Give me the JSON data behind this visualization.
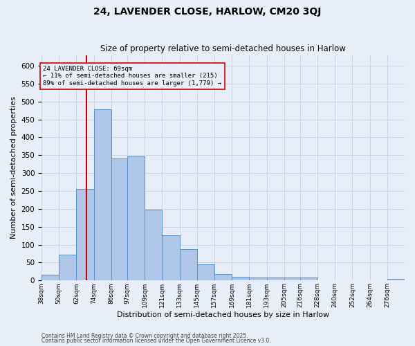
{
  "title": "24, LAVENDER CLOSE, HARLOW, CM20 3QJ",
  "subtitle": "Size of property relative to semi-detached houses in Harlow",
  "xlabel": "Distribution of semi-detached houses by size in Harlow",
  "ylabel": "Number of semi-detached properties",
  "categories": [
    "38sqm",
    "50sqm",
    "62sqm",
    "74sqm",
    "86sqm",
    "97sqm",
    "109sqm",
    "121sqm",
    "133sqm",
    "145sqm",
    "157sqm",
    "169sqm",
    "181sqm",
    "193sqm",
    "205sqm",
    "216sqm",
    "228sqm",
    "240sqm",
    "252sqm",
    "264sqm",
    "276sqm"
  ],
  "bin_lefts": [
    38,
    50,
    62,
    74,
    86,
    97,
    109,
    121,
    133,
    145,
    157,
    169,
    181,
    193,
    205,
    216,
    228,
    240,
    252,
    264,
    276
  ],
  "bin_rights": [
    50,
    62,
    74,
    86,
    97,
    109,
    121,
    133,
    145,
    157,
    169,
    181,
    193,
    205,
    216,
    228,
    240,
    252,
    264,
    276,
    288
  ],
  "values": [
    17,
    73,
    255,
    478,
    340,
    347,
    197,
    126,
    88,
    46,
    18,
    11,
    8,
    8,
    9,
    9,
    1,
    0,
    1,
    0,
    5
  ],
  "bar_color": "#aec6e8",
  "bar_edge_color": "#5a8fc2",
  "grid_color": "#c8d4e8",
  "background_color": "#e8eef8",
  "property_line_x": 69,
  "property_line_color": "#cc0000",
  "annotation_title": "24 LAVENDER CLOSE: 69sqm",
  "annotation_line1": "← 11% of semi-detached houses are smaller (215)",
  "annotation_line2": "89% of semi-detached houses are larger (1,779) →",
  "annotation_box_color": "#cc0000",
  "ylim": [
    0,
    630
  ],
  "yticks": [
    0,
    50,
    100,
    150,
    200,
    250,
    300,
    350,
    400,
    450,
    500,
    550,
    600
  ],
  "footnote1": "Contains HM Land Registry data © Crown copyright and database right 2025.",
  "footnote2": "Contains public sector information licensed under the Open Government Licence v3.0."
}
